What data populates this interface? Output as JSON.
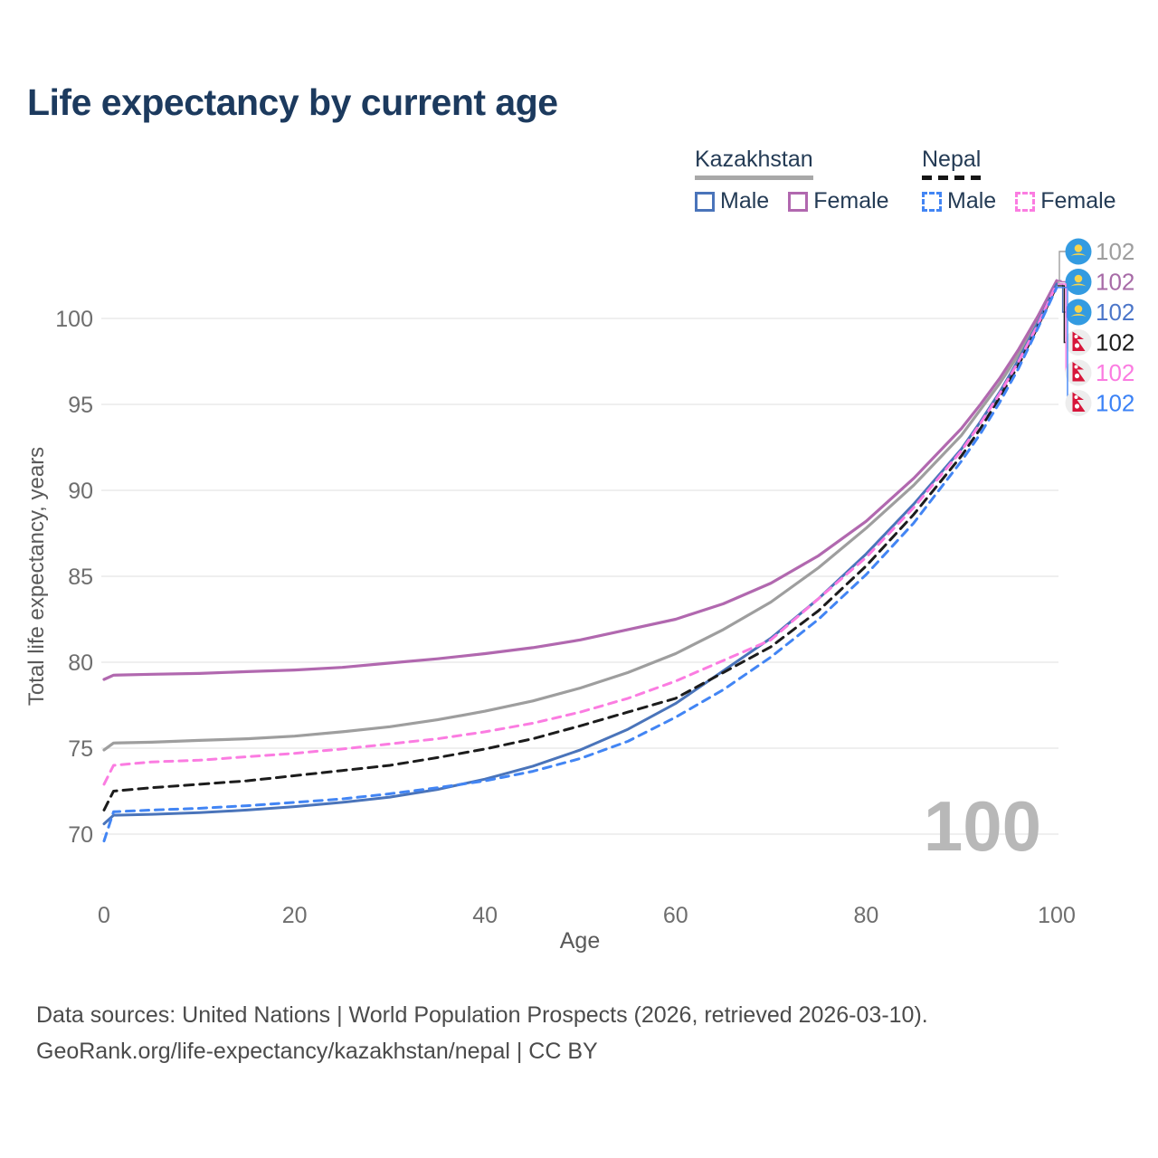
{
  "title": "Life expectancy by current age",
  "legend": {
    "kazakhstan": {
      "country": "Kazakhstan",
      "male_label": "Male",
      "female_label": "Female"
    },
    "nepal": {
      "country": "Nepal",
      "male_label": "Male",
      "female_label": "Female"
    }
  },
  "footer": {
    "line1": "Data sources: United Nations | World Population Prospects (2026, retrieved 2026-03-10).",
    "line2": "GeoRank.org/life-expectancy/kazakhstan/nepal | CC BY"
  },
  "chart_data": {
    "type": "line",
    "title": "Life expectancy by current age",
    "xlabel": "Age",
    "ylabel": "Total life expectancy, years",
    "x_ticks": [
      0,
      20,
      40,
      60,
      80,
      100
    ],
    "y_ticks": [
      70,
      75,
      80,
      85,
      90,
      95,
      100
    ],
    "xlim": [
      0,
      100
    ],
    "ylim": [
      69,
      103
    ],
    "grid": "horizontal-only",
    "legend_position": "top-right",
    "watermark": "100",
    "colors": {
      "kz_male": "#4a74ba",
      "kz_female": "#b168af",
      "kz_both": "#9e9e9e",
      "np_male": "#4285f4",
      "np_female": "#fb7ce1",
      "np_both": "#1c1c1c",
      "grid": "#eaeaea",
      "axis_text": "#6e6e6e",
      "watermark": "#b8b8b8"
    },
    "series": [
      {
        "id": "kz_both",
        "name": "Kazakhstan",
        "style": "solid",
        "color": "#9e9e9e",
        "width": 3.2,
        "dash": null,
        "points": [
          [
            0,
            74.9
          ],
          [
            1,
            75.3
          ],
          [
            5,
            75.35
          ],
          [
            10,
            75.45
          ],
          [
            15,
            75.55
          ],
          [
            20,
            75.7
          ],
          [
            25,
            75.95
          ],
          [
            30,
            76.25
          ],
          [
            35,
            76.65
          ],
          [
            40,
            77.15
          ],
          [
            45,
            77.75
          ],
          [
            50,
            78.5
          ],
          [
            55,
            79.4
          ],
          [
            60,
            80.5
          ],
          [
            65,
            81.9
          ],
          [
            70,
            83.5
          ],
          [
            75,
            85.5
          ],
          [
            80,
            87.8
          ],
          [
            85,
            90.3
          ],
          [
            90,
            93.2
          ],
          [
            92,
            94.7
          ],
          [
            94,
            96.2
          ],
          [
            96,
            97.9
          ],
          [
            98,
            99.9
          ],
          [
            100,
            102.1
          ]
        ]
      },
      {
        "id": "kz_female",
        "name": "Kazakhstan Female",
        "style": "solid",
        "color": "#b168af",
        "width": 3.2,
        "dash": null,
        "points": [
          [
            0,
            79.0
          ],
          [
            1,
            79.25
          ],
          [
            5,
            79.3
          ],
          [
            10,
            79.35
          ],
          [
            15,
            79.45
          ],
          [
            20,
            79.55
          ],
          [
            25,
            79.7
          ],
          [
            30,
            79.95
          ],
          [
            35,
            80.2
          ],
          [
            40,
            80.5
          ],
          [
            45,
            80.85
          ],
          [
            50,
            81.3
          ],
          [
            55,
            81.9
          ],
          [
            60,
            82.5
          ],
          [
            65,
            83.4
          ],
          [
            70,
            84.6
          ],
          [
            75,
            86.2
          ],
          [
            80,
            88.2
          ],
          [
            85,
            90.7
          ],
          [
            90,
            93.6
          ],
          [
            92,
            95.0
          ],
          [
            94,
            96.5
          ],
          [
            96,
            98.2
          ],
          [
            98,
            100.1
          ],
          [
            100,
            102.2
          ]
        ]
      },
      {
        "id": "kz_male",
        "name": "Kazakhstan Male",
        "style": "solid",
        "color": "#4a74ba",
        "width": 3.0,
        "dash": null,
        "points": [
          [
            0,
            70.6
          ],
          [
            1,
            71.1
          ],
          [
            5,
            71.15
          ],
          [
            10,
            71.25
          ],
          [
            15,
            71.4
          ],
          [
            20,
            71.6
          ],
          [
            25,
            71.85
          ],
          [
            30,
            72.15
          ],
          [
            35,
            72.6
          ],
          [
            40,
            73.2
          ],
          [
            45,
            73.95
          ],
          [
            50,
            74.9
          ],
          [
            55,
            76.1
          ],
          [
            60,
            77.6
          ],
          [
            65,
            79.5
          ],
          [
            70,
            81.4
          ],
          [
            75,
            83.7
          ],
          [
            80,
            86.3
          ],
          [
            85,
            89.2
          ],
          [
            90,
            92.4
          ],
          [
            92,
            94.0
          ],
          [
            94,
            95.7
          ],
          [
            96,
            97.6
          ],
          [
            98,
            99.7
          ],
          [
            100,
            102.0
          ]
        ]
      },
      {
        "id": "np_both",
        "name": "Nepal",
        "style": "dashed",
        "color": "#1c1c1c",
        "width": 3.0,
        "dash": "10 7",
        "points": [
          [
            0,
            71.4
          ],
          [
            1,
            72.5
          ],
          [
            5,
            72.7
          ],
          [
            10,
            72.9
          ],
          [
            15,
            73.1
          ],
          [
            20,
            73.4
          ],
          [
            25,
            73.7
          ],
          [
            30,
            74.0
          ],
          [
            35,
            74.45
          ],
          [
            40,
            74.95
          ],
          [
            45,
            75.55
          ],
          [
            50,
            76.3
          ],
          [
            55,
            77.1
          ],
          [
            60,
            77.9
          ],
          [
            65,
            79.4
          ],
          [
            70,
            80.9
          ],
          [
            75,
            83.0
          ],
          [
            80,
            85.6
          ],
          [
            85,
            88.6
          ],
          [
            90,
            92.0
          ],
          [
            92,
            93.6
          ],
          [
            94,
            95.4
          ],
          [
            96,
            97.3
          ],
          [
            98,
            99.5
          ],
          [
            100,
            101.9
          ]
        ]
      },
      {
        "id": "np_female",
        "name": "Nepal Female",
        "style": "dashed",
        "color": "#fb7ce1",
        "width": 3.0,
        "dash": "9 7",
        "points": [
          [
            0,
            72.9
          ],
          [
            1,
            74.0
          ],
          [
            5,
            74.2
          ],
          [
            10,
            74.3
          ],
          [
            15,
            74.5
          ],
          [
            20,
            74.7
          ],
          [
            25,
            74.95
          ],
          [
            30,
            75.25
          ],
          [
            35,
            75.55
          ],
          [
            40,
            75.95
          ],
          [
            45,
            76.45
          ],
          [
            50,
            77.1
          ],
          [
            55,
            77.9
          ],
          [
            60,
            78.9
          ],
          [
            65,
            80.1
          ],
          [
            70,
            81.3
          ],
          [
            75,
            83.7
          ],
          [
            80,
            86.1
          ],
          [
            85,
            89.0
          ],
          [
            90,
            92.3
          ],
          [
            92,
            93.9
          ],
          [
            94,
            95.6
          ],
          [
            96,
            97.5
          ],
          [
            98,
            99.6
          ],
          [
            100,
            102.0
          ]
        ]
      },
      {
        "id": "np_male",
        "name": "Nepal Male",
        "style": "dashed",
        "color": "#4285f4",
        "width": 3.0,
        "dash": "9 7",
        "points": [
          [
            0,
            69.6
          ],
          [
            1,
            71.3
          ],
          [
            5,
            71.4
          ],
          [
            10,
            71.5
          ],
          [
            15,
            71.65
          ],
          [
            20,
            71.85
          ],
          [
            25,
            72.05
          ],
          [
            30,
            72.35
          ],
          [
            35,
            72.7
          ],
          [
            40,
            73.1
          ],
          [
            45,
            73.65
          ],
          [
            50,
            74.4
          ],
          [
            55,
            75.4
          ],
          [
            60,
            76.8
          ],
          [
            65,
            78.4
          ],
          [
            70,
            80.3
          ],
          [
            75,
            82.5
          ],
          [
            80,
            85.1
          ],
          [
            85,
            88.1
          ],
          [
            90,
            91.7
          ],
          [
            92,
            93.3
          ],
          [
            94,
            95.1
          ],
          [
            96,
            97.1
          ],
          [
            98,
            99.4
          ],
          [
            100,
            101.8
          ]
        ]
      }
    ],
    "end_labels": [
      {
        "series": "kz_both",
        "flag": "kazakhstan",
        "value": "102",
        "color": "#9e9e9e"
      },
      {
        "series": "kz_female",
        "flag": "kazakhstan",
        "value": "102",
        "color": "#a76ba7"
      },
      {
        "series": "kz_male",
        "flag": "kazakhstan",
        "value": "102",
        "color": "#4c76c9"
      },
      {
        "series": "np_both",
        "flag": "nepal",
        "value": "102",
        "color": "#1d1d1d"
      },
      {
        "series": "np_female",
        "flag": "nepal",
        "value": "102",
        "color": "#fb7ce1"
      },
      {
        "series": "np_male",
        "flag": "nepal",
        "value": "102",
        "color": "#3b82f6"
      }
    ]
  }
}
